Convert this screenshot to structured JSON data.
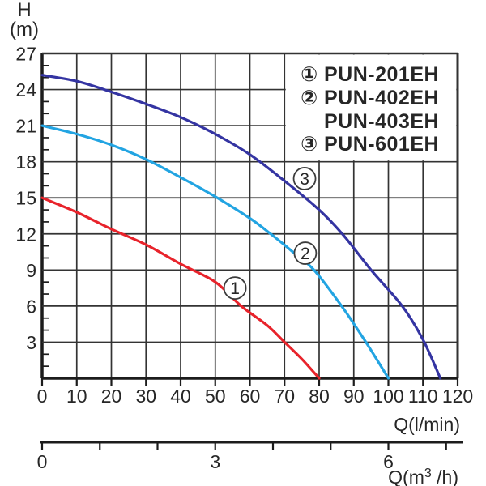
{
  "page": {
    "background": "#ffffff"
  },
  "chart_data": {
    "type": "line",
    "title": "",
    "ylabel_line1": "H",
    "ylabel_line2": "(m)",
    "xlabel": "Q(l/min)",
    "x2label_parts": {
      "prefix": "Q(m",
      "sup": "3",
      "suffix": " /h)"
    },
    "xlim": [
      0,
      120
    ],
    "ylim": [
      0,
      27
    ],
    "x_ticks": [
      0,
      10,
      20,
      30,
      40,
      50,
      60,
      70,
      80,
      90,
      100,
      110,
      120
    ],
    "y_ticks": [
      3,
      6,
      9,
      12,
      15,
      18,
      21,
      24,
      27
    ],
    "y_minor_step": 1,
    "grid": "on",
    "x2_axis": {
      "unit": "m3/h",
      "ticks": [
        0,
        1,
        2,
        3,
        4,
        5,
        6,
        7
      ],
      "labeled_ticks": [
        0,
        3,
        6
      ],
      "lmin_per_unit": 16.6667
    },
    "series": [
      {
        "name": "PUN-201EH",
        "badge": "1",
        "color": "#e8232b",
        "points": [
          [
            0,
            15
          ],
          [
            10,
            13.8
          ],
          [
            20,
            12.4
          ],
          [
            30,
            11.1
          ],
          [
            40,
            9.5
          ],
          [
            50,
            8.0
          ],
          [
            57.5,
            6.0
          ],
          [
            65,
            4.4
          ],
          [
            70,
            3.0
          ],
          [
            75,
            1.6
          ],
          [
            80,
            0
          ]
        ]
      },
      {
        "name": "PUN-402EH / PUN-403EH",
        "badge": "2",
        "color": "#22a4e2",
        "points": [
          [
            0,
            21
          ],
          [
            10,
            20.3
          ],
          [
            20,
            19.4
          ],
          [
            30,
            18.2
          ],
          [
            40,
            16.7
          ],
          [
            50,
            15.1
          ],
          [
            60,
            13.3
          ],
          [
            66,
            12
          ],
          [
            72,
            10.6
          ],
          [
            78.5,
            9
          ],
          [
            86.5,
            6
          ],
          [
            93.5,
            3
          ],
          [
            100,
            0
          ]
        ]
      },
      {
        "name": "PUN-601EH",
        "badge": "3",
        "color": "#3434a2",
        "points": [
          [
            0,
            25.2
          ],
          [
            10,
            24.7
          ],
          [
            20,
            23.8
          ],
          [
            30,
            22.8
          ],
          [
            40,
            21.7
          ],
          [
            50,
            20.3
          ],
          [
            60,
            18.6
          ],
          [
            70,
            16.4
          ],
          [
            80,
            14.0
          ],
          [
            87,
            11.9
          ],
          [
            95,
            9.0
          ],
          [
            104,
            6.0
          ],
          [
            110,
            3.2
          ],
          [
            115,
            0
          ]
        ]
      }
    ],
    "badges_on_chart": [
      {
        "label": "1",
        "q": 55.7,
        "h": 7.5
      },
      {
        "label": "2",
        "q": 76.0,
        "h": 10.4
      },
      {
        "label": "3",
        "q": 75.8,
        "h": 16.6
      }
    ],
    "legend": {
      "position": "top-right",
      "rows": [
        {
          "badge": "①",
          "label": "PUN-201EH"
        },
        {
          "badge": "②",
          "label": "PUN-402EH"
        },
        {
          "badge": "",
          "label": "PUN-403EH"
        },
        {
          "badge": "③",
          "label": "PUN-601EH"
        }
      ]
    },
    "colors": {
      "grid": "#333333",
      "axis": "#1c1c1c",
      "text": "#262626",
      "legend_bg": "#ffffff",
      "badge_circle": "#3c3c3c"
    }
  }
}
